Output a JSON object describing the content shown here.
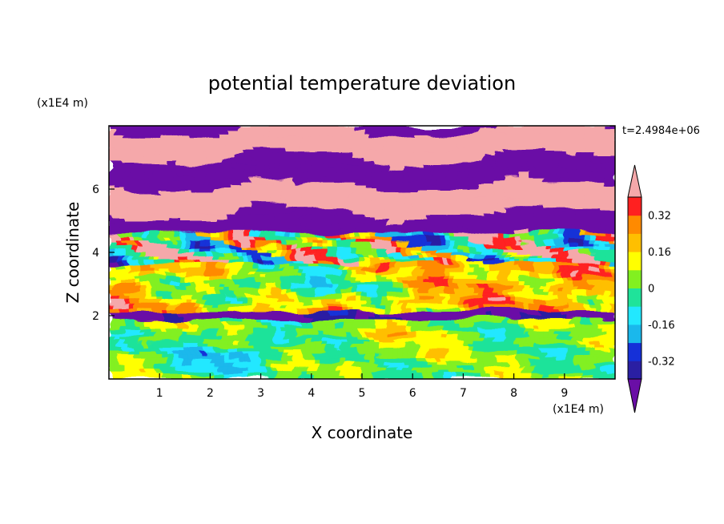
{
  "chart_data": {
    "type": "heatmap",
    "title": "potential temperature deviation",
    "xlabel": "X coordinate",
    "ylabel": "Z coordinate",
    "x_unit": "(x1E4 m)",
    "y_unit": "(x1E4 m)",
    "time_label": "t=2.4984e+06",
    "xlim": [
      0,
      10
    ],
    "ylim": [
      0,
      8
    ],
    "x_ticks": [
      "1",
      "2",
      "3",
      "4",
      "5",
      "6",
      "7",
      "8",
      "9"
    ],
    "y_ticks": [
      "2",
      "4",
      "6"
    ],
    "colorbar": {
      "levels": [
        -0.4,
        -0.32,
        -0.24,
        -0.16,
        -0.08,
        0,
        0.08,
        0.16,
        0.24,
        0.32,
        0.4
      ],
      "labels": [
        "0.32",
        "0.16",
        "0",
        "-0.16",
        "-0.32"
      ],
      "colors": [
        "#6a0ea6",
        "#2a1fa3",
        "#1530d8",
        "#1ab8ec",
        "#22e8ff",
        "#1fe39a",
        "#82f020",
        "#ffff00",
        "#ffbf00",
        "#ff8a00",
        "#ff2020",
        "#f5a8aa"
      ],
      "extend": "both"
    },
    "bands": [
      {
        "z_range": [
          7.2,
          7.9
        ],
        "dominant": ">0.4 / <-0.4 alternating"
      },
      {
        "z_range": [
          4.5,
          7.2
        ],
        "dominant": ">0.4 / <-0.4 alternating"
      },
      {
        "z_range": [
          2.1,
          4.5
        ],
        "dominant": "mixed -0.08 to 0.4"
      },
      {
        "z_range": [
          0,
          2.1
        ],
        "dominant": "-0.16 to 0.16"
      }
    ]
  }
}
